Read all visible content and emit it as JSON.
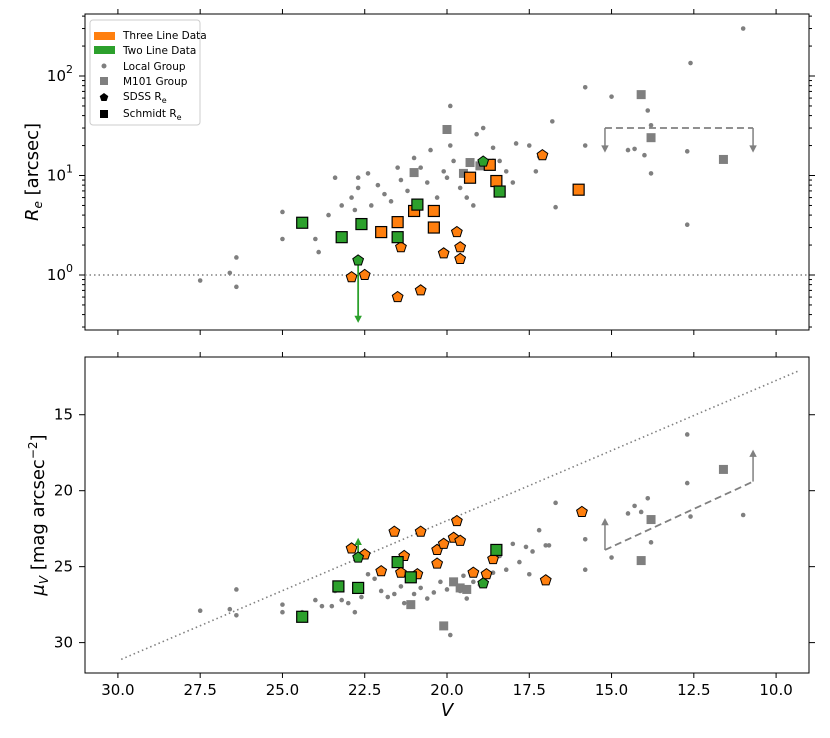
{
  "chart_data": [
    {
      "panel": "top",
      "type": "scatter",
      "yscale": "log",
      "xlabel": "",
      "ylabel_main": "R",
      "ylabel_sub": "e",
      "ylabel_rest": " [arcsec]",
      "xlim": [
        31,
        9
      ],
      "ylim": [
        0.28,
        420
      ],
      "yticks": [
        {
          "value": 1,
          "base": "10",
          "exp": "0"
        },
        {
          "value": 10,
          "base": "10",
          "exp": "1"
        },
        {
          "value": 100,
          "base": "10",
          "exp": "2"
        }
      ],
      "reference_line": {
        "y": 1,
        "style": "dotted"
      },
      "legend": [
        {
          "label": "Three Line Data",
          "marker": "patch",
          "color": "#ff7f0e"
        },
        {
          "label": "Two Line Data",
          "marker": "patch",
          "color": "#2ca02c"
        },
        {
          "label": "Local Group",
          "marker": "dot",
          "color": "#555555"
        },
        {
          "label": "M101 Group",
          "marker": "square",
          "color": "#7f7f7f"
        },
        {
          "label": "SDSS R",
          "sub": "e",
          "marker": "pentagon",
          "color": "#000000"
        },
        {
          "label": "Schmidt R",
          "sub": "e",
          "marker": "square",
          "color": "#000000"
        }
      ],
      "series": [
        {
          "name": "Local Group",
          "marker": "dot",
          "color": "#7f7f7f",
          "points": [
            [
              27.5,
              0.88
            ],
            [
              26.6,
              1.05
            ],
            [
              26.4,
              0.76
            ],
            [
              26.4,
              1.5
            ],
            [
              25.0,
              4.3
            ],
            [
              25.0,
              2.3
            ],
            [
              24.0,
              2.3
            ],
            [
              23.9,
              1.7
            ],
            [
              23.6,
              4.0
            ],
            [
              23.4,
              9.5
            ],
            [
              23.2,
              5.0
            ],
            [
              22.9,
              6.0
            ],
            [
              22.8,
              4.5
            ],
            [
              22.7,
              7.5
            ],
            [
              22.7,
              9.5
            ],
            [
              22.4,
              10.5
            ],
            [
              22.3,
              5.0
            ],
            [
              22.1,
              8.0
            ],
            [
              21.9,
              6.5
            ],
            [
              21.7,
              5.5
            ],
            [
              21.5,
              12.0
            ],
            [
              21.4,
              9.0
            ],
            [
              21.2,
              7.0
            ],
            [
              21.0,
              15.0
            ],
            [
              20.8,
              12.0
            ],
            [
              20.6,
              8.5
            ],
            [
              20.5,
              18.0
            ],
            [
              20.3,
              6.0
            ],
            [
              20.1,
              11.0
            ],
            [
              20.0,
              9.5
            ],
            [
              19.9,
              20.0
            ],
            [
              19.9,
              50.0
            ],
            [
              19.8,
              14.0
            ],
            [
              19.6,
              7.5
            ],
            [
              19.4,
              6.0
            ],
            [
              19.3,
              10.0
            ],
            [
              19.2,
              5.0
            ],
            [
              19.1,
              26.0
            ],
            [
              18.9,
              30.0
            ],
            [
              18.8,
              14.0
            ],
            [
              18.6,
              19.0
            ],
            [
              18.6,
              14.0
            ],
            [
              18.4,
              14.0
            ],
            [
              18.2,
              11.0
            ],
            [
              18.0,
              8.5
            ],
            [
              17.9,
              21.0
            ],
            [
              17.5,
              20.0
            ],
            [
              17.3,
              11.0
            ],
            [
              17.2,
              15.5
            ],
            [
              16.8,
              35.0
            ],
            [
              16.7,
              4.8
            ],
            [
              15.8,
              77.0
            ],
            [
              15.8,
              20.0
            ],
            [
              15.0,
              62.0
            ],
            [
              14.5,
              18.0
            ],
            [
              14.3,
              18.5
            ],
            [
              14.0,
              16.0
            ],
            [
              13.9,
              45.0
            ],
            [
              13.8,
              10.5
            ],
            [
              13.8,
              32.0
            ],
            [
              12.7,
              3.2
            ],
            [
              12.7,
              17.5
            ],
            [
              12.6,
              135.0
            ],
            [
              11.0,
              300.0
            ]
          ]
        },
        {
          "name": "M101 Group",
          "marker": "square",
          "color": "#7f7f7f",
          "points": [
            [
              21.0,
              10.7
            ],
            [
              20.0,
              29.0
            ],
            [
              19.5,
              10.5
            ],
            [
              19.3,
              13.5
            ],
            [
              19.0,
              12.5
            ],
            [
              14.1,
              65.0
            ],
            [
              13.8,
              24.0
            ],
            [
              11.6,
              14.5
            ]
          ]
        },
        {
          "name": "Three Line Data (Schmidt)",
          "marker": "square",
          "color": "#ff7f0e",
          "points": [
            [
              22.0,
              2.7
            ],
            [
              21.5,
              3.4
            ],
            [
              21.0,
              4.4
            ],
            [
              20.4,
              4.4
            ],
            [
              20.4,
              3.0
            ],
            [
              19.3,
              9.5
            ],
            [
              18.7,
              12.8
            ],
            [
              18.5,
              8.8
            ],
            [
              16.0,
              7.2
            ]
          ]
        },
        {
          "name": "Three Line Data (SDSS)",
          "marker": "pentagon",
          "color": "#ff7f0e",
          "points": [
            [
              22.9,
              0.95
            ],
            [
              22.5,
              1.0
            ],
            [
              21.4,
              1.9
            ],
            [
              21.5,
              0.6
            ],
            [
              20.8,
              0.7
            ],
            [
              20.1,
              1.65
            ],
            [
              19.7,
              2.7
            ],
            [
              19.6,
              1.9
            ],
            [
              19.6,
              1.45
            ],
            [
              17.1,
              16.0
            ]
          ]
        },
        {
          "name": "Two Line Data (Schmidt)",
          "marker": "square",
          "color": "#2ca02c",
          "points": [
            [
              24.4,
              3.35
            ],
            [
              23.2,
              2.4
            ],
            [
              22.6,
              3.25
            ],
            [
              21.5,
              2.4
            ],
            [
              20.9,
              5.1
            ],
            [
              18.4,
              6.9
            ]
          ]
        },
        {
          "name": "Two Line Data (SDSS)",
          "marker": "pentagon",
          "color": "#2ca02c",
          "points": [
            [
              22.7,
              1.4
            ],
            [
              18.9,
              13.8
            ]
          ]
        }
      ],
      "annotations": [
        {
          "type": "bracket",
          "x": [
            15.2,
            10.7
          ],
          "y": 30,
          "tips_to": 17,
          "color": "#808080"
        },
        {
          "type": "arrow",
          "x": 22.7,
          "from": 1.4,
          "to": 0.33,
          "color": "#2ca02c"
        }
      ]
    },
    {
      "panel": "bottom",
      "type": "scatter",
      "xlabel": "V",
      "ylabel_main": "μ",
      "ylabel_sub": "V",
      "ylabel_rest": " [mag arcsec",
      "ylabel_sup": "−2",
      "ylabel_end": "]",
      "xlim": [
        31,
        9
      ],
      "ylim": [
        32.0,
        11.2
      ],
      "xticks": [
        "30.0",
        "27.5",
        "25.0",
        "22.5",
        "20.0",
        "17.5",
        "15.0",
        "12.5",
        "10.0"
      ],
      "xtick_values": [
        30.0,
        27.5,
        25.0,
        22.5,
        20.0,
        17.5,
        15.0,
        12.5,
        10.0
      ],
      "yticks": [
        "15",
        "20",
        "25",
        "30"
      ],
      "ytick_values": [
        15,
        20,
        25,
        30
      ],
      "reference_line": {
        "x": [
          29.9,
          9.3
        ],
        "y": [
          31.1,
          12.1
        ],
        "style": "dotted"
      },
      "series": [
        {
          "name": "Local Group",
          "marker": "dot",
          "color": "#7f7f7f",
          "points": [
            [
              27.5,
              27.9
            ],
            [
              26.6,
              27.8
            ],
            [
              26.4,
              28.2
            ],
            [
              26.4,
              26.5
            ],
            [
              25.0,
              27.5
            ],
            [
              25.0,
              28.0
            ],
            [
              24.4,
              28.0
            ],
            [
              24.0,
              27.2
            ],
            [
              23.8,
              27.6
            ],
            [
              23.5,
              27.6
            ],
            [
              23.4,
              26.6
            ],
            [
              23.2,
              27.2
            ],
            [
              23.0,
              27.4
            ],
            [
              22.8,
              28.0
            ],
            [
              22.6,
              27.0
            ],
            [
              22.4,
              25.5
            ],
            [
              22.2,
              25.8
            ],
            [
              22.0,
              26.6
            ],
            [
              21.8,
              27.0
            ],
            [
              21.6,
              26.8
            ],
            [
              21.4,
              26.3
            ],
            [
              21.3,
              27.4
            ],
            [
              21.2,
              25.5
            ],
            [
              21.0,
              26.8
            ],
            [
              20.8,
              26.4
            ],
            [
              20.6,
              27.1
            ],
            [
              20.4,
              26.7
            ],
            [
              20.2,
              26.0
            ],
            [
              20.0,
              26.5
            ],
            [
              19.9,
              29.5
            ],
            [
              19.8,
              25.9
            ],
            [
              19.6,
              26.6
            ],
            [
              19.5,
              25.6
            ],
            [
              19.4,
              27.1
            ],
            [
              19.2,
              26.0
            ],
            [
              19.0,
              26.2
            ],
            [
              18.8,
              25.7
            ],
            [
              18.6,
              25.4
            ],
            [
              18.4,
              24.3
            ],
            [
              18.2,
              25.2
            ],
            [
              18.0,
              23.5
            ],
            [
              17.8,
              24.7
            ],
            [
              17.6,
              23.7
            ],
            [
              17.5,
              25.5
            ],
            [
              17.4,
              24.0
            ],
            [
              17.2,
              22.6
            ],
            [
              17.0,
              23.6
            ],
            [
              16.9,
              23.6
            ],
            [
              16.7,
              20.8
            ],
            [
              15.8,
              25.2
            ],
            [
              15.8,
              23.2
            ],
            [
              15.0,
              24.4
            ],
            [
              14.5,
              21.5
            ],
            [
              14.3,
              21.0
            ],
            [
              14.1,
              21.4
            ],
            [
              13.9,
              20.5
            ],
            [
              13.8,
              23.4
            ],
            [
              12.7,
              16.3
            ],
            [
              12.7,
              19.5
            ],
            [
              12.6,
              21.7
            ],
            [
              11.0,
              21.6
            ]
          ]
        },
        {
          "name": "M101 Group",
          "marker": "square",
          "color": "#7f7f7f",
          "points": [
            [
              21.1,
              27.5
            ],
            [
              20.1,
              28.9
            ],
            [
              19.8,
              26.0
            ],
            [
              19.6,
              26.4
            ],
            [
              19.4,
              26.5
            ],
            [
              14.1,
              24.6
            ],
            [
              13.8,
              21.9
            ],
            [
              11.6,
              18.6
            ]
          ]
        },
        {
          "name": "Three Line Data (SDSS)",
          "marker": "pentagon",
          "color": "#ff7f0e",
          "points": [
            [
              22.9,
              23.8
            ],
            [
              22.5,
              24.2
            ],
            [
              22.0,
              25.3
            ],
            [
              21.6,
              22.7
            ],
            [
              21.4,
              25.4
            ],
            [
              21.3,
              24.3
            ],
            [
              20.9,
              25.5
            ],
            [
              20.8,
              22.7
            ],
            [
              20.3,
              24.8
            ],
            [
              20.3,
              23.9
            ],
            [
              20.1,
              23.5
            ],
            [
              19.8,
              23.1
            ],
            [
              19.7,
              22.0
            ],
            [
              19.6,
              23.3
            ],
            [
              19.2,
              25.4
            ],
            [
              18.8,
              25.5
            ],
            [
              18.6,
              24.5
            ],
            [
              17.0,
              25.9
            ],
            [
              15.9,
              21.4
            ]
          ]
        },
        {
          "name": "Two Line Data (Schmidt)",
          "marker": "square",
          "color": "#2ca02c",
          "points": [
            [
              24.4,
              28.3
            ],
            [
              23.3,
              26.3
            ],
            [
              22.7,
              26.4
            ],
            [
              21.5,
              24.7
            ],
            [
              21.1,
              25.7
            ],
            [
              18.5,
              23.9
            ]
          ]
        },
        {
          "name": "Two Line Data (SDSS)",
          "marker": "pentagon",
          "color": "#2ca02c",
          "points": [
            [
              22.7,
              24.4
            ],
            [
              18.9,
              26.1
            ]
          ]
        }
      ],
      "annotations": [
        {
          "type": "bracket",
          "x": [
            15.2,
            10.7
          ],
          "y_start": 23.9,
          "y_end": 19.4,
          "tip_left": 21.8,
          "tip_right": 17.3,
          "color": "#808080"
        },
        {
          "type": "arrow",
          "x": 22.7,
          "from": 24.4,
          "to": 23.1,
          "color": "#2ca02c"
        }
      ]
    }
  ]
}
